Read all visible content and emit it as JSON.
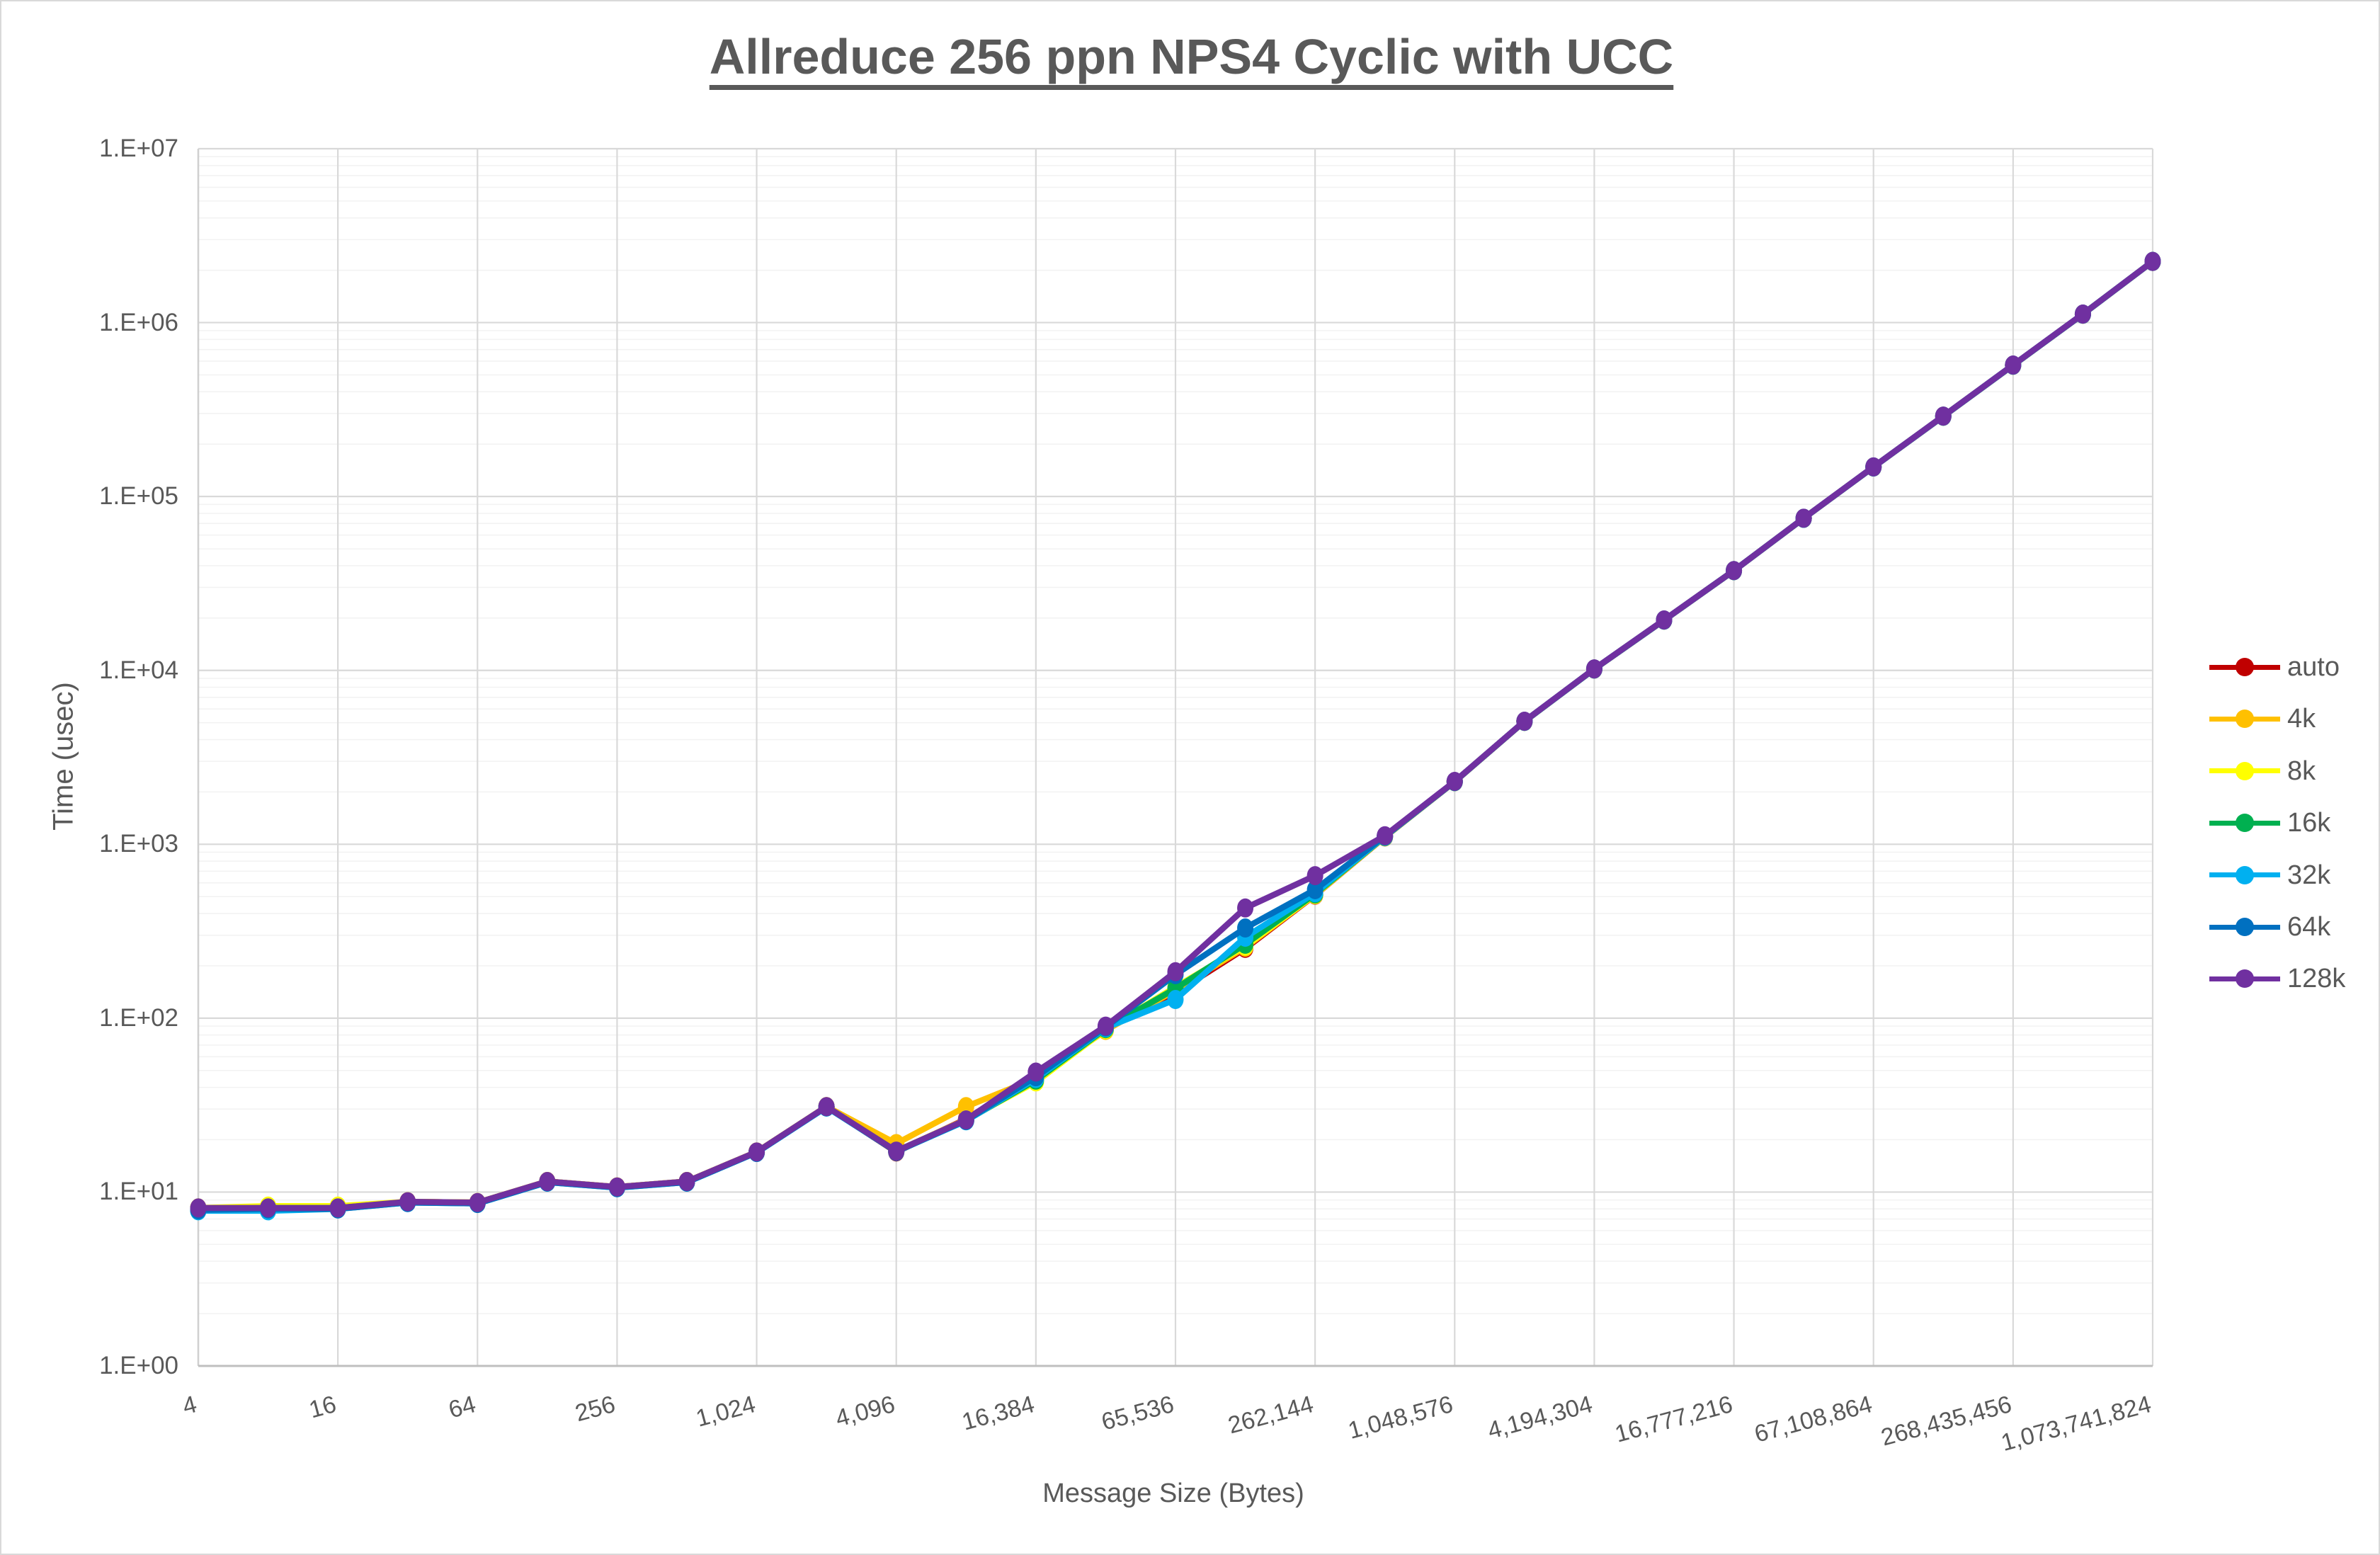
{
  "title": "Allreduce 256 ppn NPS4 Cyclic with UCC",
  "palette": {
    "text_gray": "#595959",
    "grid_major": "#d9d9d9",
    "grid_minor": "#f2f2f2",
    "axis_line": "#bfbfbf",
    "plot_left_edge": "#d0d0d0"
  },
  "chart_data": {
    "type": "line",
    "title": "Allreduce 256 ppn NPS4 Cyclic with UCC",
    "xlabel": "Message Size (Bytes)",
    "ylabel": "Time (usec)",
    "x_scale": "log2",
    "y_scale": "log10",
    "ylim": [
      1,
      10000000
    ],
    "grid": {
      "major": true,
      "minor": true
    },
    "legend_position": "right",
    "x": [
      4,
      8,
      16,
      32,
      64,
      128,
      256,
      512,
      1024,
      2048,
      4096,
      8192,
      16384,
      32768,
      65536,
      131072,
      262144,
      524288,
      1048576,
      2097152,
      4194304,
      8388608,
      16777216,
      33554432,
      67108864,
      134217728,
      268435456,
      536870912,
      1073741824
    ],
    "x_tick_labels": [
      "4",
      "16",
      "64",
      "256",
      "1,024",
      "4,096",
      "16,384",
      "65,536",
      "262,144",
      "1,048,576",
      "4,194,304",
      "16,777,216",
      "67,108,864",
      "268,435,456",
      "1,073,741,824"
    ],
    "y_tick_labels": [
      "1.E+00",
      "1.E+01",
      "1.E+02",
      "1.E+03",
      "1.E+04",
      "1.E+05",
      "1.E+06",
      "1.E+07"
    ],
    "series": [
      {
        "name": "auto",
        "color": "#C00000",
        "values": [
          8.1,
          8.1,
          8.1,
          8.8,
          8.7,
          11.5,
          10.7,
          11.5,
          17.0,
          31,
          17.0,
          26.3,
          46.5,
          86,
          140,
          252,
          510,
          1102,
          2290,
          5088,
          10175,
          19450,
          37450,
          74880,
          147750,
          289400,
          568800,
          1117500,
          2247500
        ]
      },
      {
        "name": "4k",
        "color": "#FFC000",
        "values": [
          8.1,
          8.1,
          8.1,
          8.8,
          8.7,
          11.5,
          10.7,
          11.5,
          17.0,
          31,
          19.0,
          31,
          45,
          85,
          145,
          256,
          512,
          1104,
          2291,
          5089,
          10178,
          19455,
          37455,
          74890,
          147780,
          289450,
          568900,
          1117800,
          2247800
        ]
      },
      {
        "name": "8k",
        "color": "#FFFF00",
        "values": [
          8.1,
          8.3,
          8.3,
          8.8,
          8.7,
          11.5,
          10.7,
          11.5,
          17.0,
          31,
          17.2,
          26.1,
          43,
          86,
          151,
          260,
          514,
          1106,
          2293,
          5091,
          10182,
          19465,
          37465,
          74910,
          147820,
          289550,
          569100,
          1118200,
          2248200
        ]
      },
      {
        "name": "16k",
        "color": "#00B050",
        "values": [
          8.0,
          8.1,
          8.1,
          8.75,
          8.65,
          11.45,
          10.65,
          11.45,
          16.95,
          30.9,
          17.15,
          25.8,
          44,
          87,
          148,
          266,
          518,
          1108,
          2294,
          5092,
          10185,
          19470,
          37470,
          74920,
          147850,
          289600,
          569200,
          1118500,
          2248500
        ]
      },
      {
        "name": "32k",
        "color": "#00B0F0",
        "values": [
          7.8,
          7.8,
          8.0,
          8.7,
          8.6,
          11.4,
          10.6,
          11.4,
          16.9,
          30.8,
          17.1,
          25.7,
          45,
          88,
          128,
          292,
          526,
          1110,
          2292,
          5090,
          10180,
          19460,
          37460,
          74900,
          147800,
          289500,
          569000,
          1118000,
          2248000
        ]
      },
      {
        "name": "64k",
        "color": "#0070C0",
        "values": [
          7.9,
          8.0,
          8.0,
          8.7,
          8.6,
          11.4,
          10.6,
          11.4,
          16.9,
          30.9,
          17.1,
          25.8,
          46,
          89,
          178,
          330,
          548,
          1115,
          2295,
          5095,
          10190,
          19480,
          37480,
          74950,
          147900,
          289700,
          569500,
          1119000,
          2249000
        ]
      },
      {
        "name": "128k",
        "color": "#7030A0",
        "values": [
          8.1,
          8.1,
          8.1,
          8.8,
          8.7,
          11.5,
          10.7,
          11.5,
          17.0,
          31,
          17.2,
          26,
          49,
          90,
          185,
          430,
          660,
          1120,
          2300,
          5100,
          10200,
          19500,
          37500,
          75000,
          148000,
          290000,
          570000,
          1120000,
          2250000
        ]
      }
    ]
  }
}
